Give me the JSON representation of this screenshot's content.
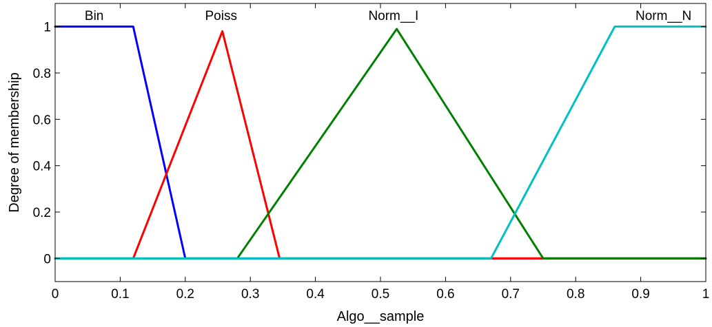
{
  "chart_data": {
    "type": "line",
    "title": "",
    "xlabel": "Algo__sample",
    "ylabel": "Degree of membership",
    "xlim": [
      0,
      1
    ],
    "ylim": [
      -0.1,
      1.1
    ],
    "grid": false,
    "legend": "none",
    "xticks": [
      0,
      0.1,
      0.2,
      0.3,
      0.4,
      0.5,
      0.6,
      0.7,
      0.8,
      0.9,
      1
    ],
    "xtick_labels": [
      "0",
      "0.1",
      "0.2",
      "0.3",
      "0.4",
      "0.5",
      "0.6",
      "0.7",
      "0.8",
      "0.9",
      "1"
    ],
    "yticks": [
      0,
      0.2,
      0.4,
      0.6,
      0.8,
      1
    ],
    "ytick_labels": [
      "0",
      "0.2",
      "0.4",
      "0.6",
      "0.8",
      "1"
    ],
    "series": [
      {
        "name": "Bin",
        "color": "#0000ff",
        "x": [
          0,
          0.12,
          0.2,
          1
        ],
        "y": [
          1,
          1,
          0,
          0
        ],
        "label_at": [
          0.06,
          1.05
        ]
      },
      {
        "name": "Poiss",
        "color": "#ff0000",
        "x": [
          0,
          0.12,
          0.257,
          0.345,
          1
        ],
        "y": [
          0,
          0,
          0.98,
          0,
          0
        ],
        "label_at": [
          0.255,
          1.05
        ]
      },
      {
        "name": "Norm__I",
        "color": "#008000",
        "x": [
          0,
          0.28,
          0.525,
          0.75,
          1
        ],
        "y": [
          0,
          0,
          0.99,
          0,
          0
        ],
        "label_at": [
          0.52,
          1.05
        ]
      },
      {
        "name": "Norm__N",
        "color": "#00c0c0",
        "x": [
          0,
          0.67,
          0.86,
          1
        ],
        "y": [
          0,
          0,
          1,
          1
        ],
        "label_at": [
          0.935,
          1.05
        ]
      }
    ]
  }
}
